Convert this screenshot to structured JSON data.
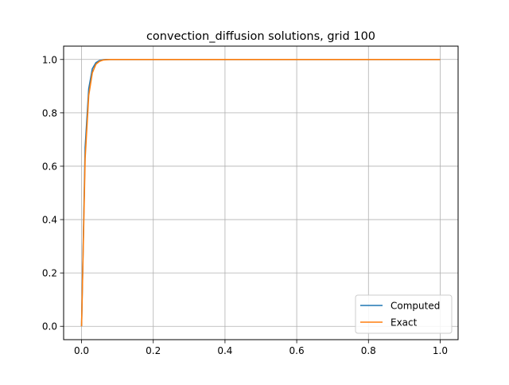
{
  "chart_data": {
    "type": "line",
    "title": "convection_diffusion solutions, grid 100",
    "xlabel": "",
    "ylabel": "",
    "xlim": [
      -0.05,
      1.05
    ],
    "ylim": [
      -0.05,
      1.05
    ],
    "xticks": [
      0.0,
      0.2,
      0.4,
      0.6,
      0.8,
      1.0
    ],
    "xtick_labels": [
      "0.0",
      "0.2",
      "0.4",
      "0.6",
      "0.8",
      "1.0"
    ],
    "yticks": [
      0.0,
      0.2,
      0.4,
      0.6,
      0.8,
      1.0
    ],
    "ytick_labels": [
      "0.0",
      "0.2",
      "0.4",
      "0.6",
      "0.8",
      "1.0"
    ],
    "grid": true,
    "legend_position": "lower-right",
    "series": [
      {
        "name": "Computed",
        "color": "#1f77b4",
        "x": [
          0.0,
          0.01,
          0.02,
          0.03,
          0.04,
          0.05,
          0.06,
          0.07,
          0.08,
          0.1,
          0.2,
          0.4,
          0.6,
          0.8,
          1.0
        ],
        "y": [
          0.0,
          0.67,
          0.89,
          0.965,
          0.988,
          0.996,
          0.999,
          1.0,
          1.0,
          1.0,
          1.0,
          1.0,
          1.0,
          1.0,
          1.0
        ]
      },
      {
        "name": "Exact",
        "color": "#ff7f0e",
        "x": [
          0.0,
          0.01,
          0.02,
          0.03,
          0.04,
          0.05,
          0.06,
          0.07,
          0.08,
          0.1,
          0.2,
          0.4,
          0.6,
          0.8,
          1.0
        ],
        "y": [
          0.0,
          0.63,
          0.865,
          0.95,
          0.982,
          0.993,
          0.998,
          0.999,
          1.0,
          1.0,
          1.0,
          1.0,
          1.0,
          1.0,
          1.0
        ]
      }
    ]
  }
}
